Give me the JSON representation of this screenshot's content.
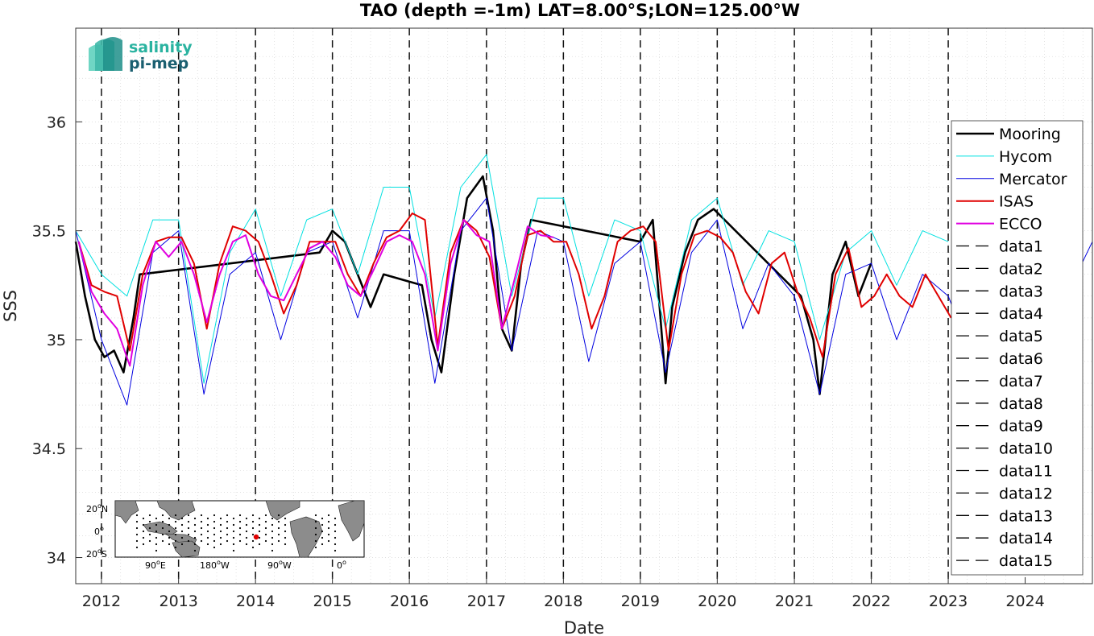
{
  "chart_data": {
    "type": "line",
    "title": "TAO (depth =-1m) LAT=8.00°S;LON=125.00°W",
    "xlabel": "Date",
    "ylabel": "SSS",
    "xlim": [
      "2011-09-01",
      "2024-11-15"
    ],
    "ylim": [
      33.88,
      36.43
    ],
    "x_ticks": [
      "2012",
      "2013",
      "2014",
      "2015",
      "2016",
      "2017",
      "2018",
      "2019",
      "2020",
      "2021",
      "2022",
      "2023",
      "2024"
    ],
    "y_ticks": [
      "34",
      "34.5",
      "35",
      "35.5",
      "36"
    ],
    "grid": true,
    "legend_position": "right",
    "vertical_dashed_lines": [
      "2012-01-01",
      "2013-01-01",
      "2014-01-01",
      "2015-01-01",
      "2016-01-01",
      "2017-01-01",
      "2018-01-01",
      "2019-01-01",
      "2020-01-01",
      "2021-01-01",
      "2022-01-01",
      "2023-01-01"
    ],
    "series": [
      {
        "name": "Mooring",
        "color": "#000000",
        "style": "thick-dots",
        "x": [
          "2011-09-01",
          "2011-10-15",
          "2011-12-01",
          "2012-01-15",
          "2012-03-01",
          "2012-04-15",
          "2012-06-01",
          "2012-07-01",
          "2014-11-01",
          "2015-01-01",
          "2015-03-01",
          "2015-05-01",
          "2015-07-01",
          "2015-09-01",
          "2016-03-01",
          "2016-04-15",
          "2016-06-01",
          "2016-08-01",
          "2016-10-01",
          "2016-12-15",
          "2017-02-01",
          "2017-03-15",
          "2017-05-01",
          "2017-06-15",
          "2017-08-01",
          "2019-01-01",
          "2019-03-01",
          "2019-05-01",
          "2019-06-01",
          "2019-08-01",
          "2019-10-01",
          "2019-12-15",
          "2021-02-01",
          "2021-04-01",
          "2021-05-01",
          "2021-07-01",
          "2021-09-01",
          "2021-11-01",
          "2021-12-31"
        ],
        "y": [
          35.45,
          35.2,
          35.0,
          34.92,
          34.95,
          34.85,
          35.1,
          35.3,
          35.4,
          35.5,
          35.45,
          35.3,
          35.15,
          35.3,
          35.25,
          35.0,
          34.85,
          35.3,
          35.65,
          35.75,
          35.5,
          35.05,
          34.95,
          35.35,
          35.55,
          35.45,
          35.55,
          34.8,
          35.15,
          35.4,
          35.55,
          35.6,
          35.2,
          35.0,
          34.75,
          35.3,
          35.45,
          35.2,
          35.35
        ]
      },
      {
        "name": "Hycom",
        "color": "#00e0e0",
        "style": "thin",
        "x": [
          "2011-09-01",
          "2012-01-01",
          "2012-05-01",
          "2012-09-01",
          "2013-01-01",
          "2013-05-01",
          "2013-09-01",
          "2014-01-01",
          "2014-05-01",
          "2014-09-01",
          "2015-01-01",
          "2015-05-01",
          "2015-09-01",
          "2016-01-01",
          "2016-05-01",
          "2016-09-01",
          "2017-01-01",
          "2017-05-01",
          "2017-09-01",
          "2018-01-01",
          "2018-05-01",
          "2018-09-01",
          "2019-01-01",
          "2019-05-01",
          "2019-09-01",
          "2020-01-01",
          "2020-05-01",
          "2020-09-01",
          "2021-01-01",
          "2021-05-01",
          "2021-09-01",
          "2022-01-01",
          "2022-05-01",
          "2022-09-01",
          "2023-01-01"
        ],
        "y": [
          35.5,
          35.3,
          35.2,
          35.55,
          35.55,
          34.8,
          35.4,
          35.6,
          35.2,
          35.55,
          35.6,
          35.3,
          35.7,
          35.7,
          35.1,
          35.7,
          35.85,
          35.2,
          35.65,
          35.65,
          35.2,
          35.55,
          35.5,
          35.05,
          35.55,
          35.65,
          35.25,
          35.5,
          35.45,
          35.0,
          35.4,
          35.5,
          35.25,
          35.5,
          35.45
        ]
      },
      {
        "name": "Mercator",
        "color": "#0000e0",
        "style": "thin",
        "x": [
          "2011-09-01",
          "2012-01-01",
          "2012-05-01",
          "2012-09-01",
          "2013-01-01",
          "2013-05-01",
          "2013-09-01",
          "2014-01-01",
          "2014-05-01",
          "2014-09-01",
          "2015-01-01",
          "2015-05-01",
          "2015-09-01",
          "2016-01-01",
          "2016-05-01",
          "2016-09-01",
          "2017-01-01",
          "2017-05-01",
          "2017-09-01",
          "2018-01-01",
          "2018-05-01",
          "2018-09-01",
          "2019-01-01",
          "2019-05-01",
          "2019-09-01",
          "2020-01-01",
          "2020-05-01",
          "2020-09-01",
          "2021-01-01",
          "2021-05-01",
          "2021-09-01",
          "2022-01-01",
          "2022-05-01",
          "2022-09-01",
          "2023-01-01",
          "2023-05-01",
          "2023-09-01",
          "2024-01-01",
          "2024-05-01",
          "2024-09-01",
          "2024-11-15"
        ],
        "y": [
          35.5,
          35.0,
          34.7,
          35.4,
          35.5,
          34.75,
          35.3,
          35.4,
          35.0,
          35.4,
          35.45,
          35.1,
          35.5,
          35.5,
          34.8,
          35.5,
          35.65,
          34.95,
          35.5,
          35.45,
          34.9,
          35.35,
          35.45,
          34.85,
          35.4,
          35.55,
          35.05,
          35.35,
          35.2,
          34.75,
          35.3,
          35.35,
          35.0,
          35.3,
          35.2,
          34.9,
          35.2,
          35.35,
          35.05,
          35.3,
          35.45
        ]
      },
      {
        "name": "ISAS",
        "color": "#e00000",
        "style": "monthly",
        "x": [
          "2011-09-15",
          "2011-11-15",
          "2012-01-15",
          "2012-03-15",
          "2012-05-15",
          "2012-07-15",
          "2012-09-15",
          "2012-11-15",
          "2013-01-15",
          "2013-03-15",
          "2013-05-15",
          "2013-07-15",
          "2013-09-15",
          "2013-11-15",
          "2014-01-15",
          "2014-03-15",
          "2014-05-15",
          "2014-07-15",
          "2014-09-15",
          "2014-11-15",
          "2015-01-15",
          "2015-03-15",
          "2015-05-15",
          "2015-07-15",
          "2015-09-15",
          "2015-11-15",
          "2016-01-15",
          "2016-03-15",
          "2016-05-15",
          "2016-07-15",
          "2016-09-15",
          "2016-11-15",
          "2017-01-15",
          "2017-03-15",
          "2017-05-15",
          "2017-07-15",
          "2017-09-15",
          "2017-11-15",
          "2018-01-15",
          "2018-03-15",
          "2018-05-15",
          "2018-07-15",
          "2018-09-15",
          "2018-11-15",
          "2019-01-15",
          "2019-03-15",
          "2019-05-15",
          "2019-07-15",
          "2019-09-15",
          "2019-11-15",
          "2020-01-15",
          "2020-03-15",
          "2020-05-15",
          "2020-07-15",
          "2020-09-15",
          "2020-11-15",
          "2021-01-15",
          "2021-03-15",
          "2021-05-15",
          "2021-07-15",
          "2021-09-15",
          "2021-11-15",
          "2022-01-15",
          "2022-03-15",
          "2022-05-15",
          "2022-07-15",
          "2022-09-15",
          "2022-11-15",
          "2023-01-15"
        ],
        "y": [
          35.45,
          35.25,
          35.22,
          35.2,
          34.95,
          35.3,
          35.45,
          35.47,
          35.47,
          35.35,
          35.05,
          35.35,
          35.52,
          35.5,
          35.45,
          35.3,
          35.12,
          35.25,
          35.45,
          35.45,
          35.45,
          35.3,
          35.2,
          35.35,
          35.47,
          35.5,
          35.58,
          35.55,
          34.97,
          35.4,
          35.55,
          35.5,
          35.38,
          35.05,
          35.2,
          35.48,
          35.5,
          35.45,
          35.45,
          35.3,
          35.05,
          35.2,
          35.45,
          35.5,
          35.52,
          35.45,
          34.95,
          35.3,
          35.48,
          35.5,
          35.47,
          35.4,
          35.22,
          35.12,
          35.35,
          35.4,
          35.22,
          35.1,
          34.92,
          35.3,
          35.42,
          35.15,
          35.2,
          35.3,
          35.2,
          35.15,
          35.3,
          35.2,
          35.1
        ]
      },
      {
        "name": "ECCO",
        "color": "#e000e0",
        "style": "monthly",
        "x": [
          "2011-09-15",
          "2011-11-15",
          "2012-01-15",
          "2012-03-15",
          "2012-05-15",
          "2012-07-15",
          "2012-09-15",
          "2012-11-15",
          "2013-01-15",
          "2013-03-15",
          "2013-05-15",
          "2013-07-15",
          "2013-09-15",
          "2013-11-15",
          "2014-01-15",
          "2014-03-15",
          "2014-05-15",
          "2014-07-15",
          "2014-09-15",
          "2014-11-15",
          "2015-01-15",
          "2015-03-15",
          "2015-05-15",
          "2015-07-15",
          "2015-09-15",
          "2015-11-15",
          "2016-01-15",
          "2016-03-15",
          "2016-05-15",
          "2016-07-15",
          "2016-09-15",
          "2016-11-15",
          "2017-01-15",
          "2017-03-15",
          "2017-05-15",
          "2017-07-15",
          "2017-09-15",
          "2017-11-15"
        ],
        "y": [
          35.45,
          35.22,
          35.12,
          35.05,
          34.88,
          35.25,
          35.45,
          35.38,
          35.45,
          35.3,
          35.08,
          35.3,
          35.45,
          35.48,
          35.3,
          35.2,
          35.18,
          35.3,
          35.42,
          35.45,
          35.38,
          35.25,
          35.2,
          35.32,
          35.45,
          35.48,
          35.45,
          35.3,
          34.95,
          35.35,
          35.55,
          35.48,
          35.45,
          35.05,
          35.28,
          35.52,
          35.48,
          35.47
        ]
      },
      {
        "name": "data1",
        "color": "#000000",
        "style": "dashed"
      },
      {
        "name": "data2",
        "color": "#000000",
        "style": "dashed"
      },
      {
        "name": "data3",
        "color": "#000000",
        "style": "dashed"
      },
      {
        "name": "data4",
        "color": "#000000",
        "style": "dashed"
      },
      {
        "name": "data5",
        "color": "#000000",
        "style": "dashed"
      },
      {
        "name": "data6",
        "color": "#000000",
        "style": "dashed"
      },
      {
        "name": "data7",
        "color": "#000000",
        "style": "dashed"
      },
      {
        "name": "data8",
        "color": "#000000",
        "style": "dashed"
      },
      {
        "name": "data9",
        "color": "#000000",
        "style": "dashed"
      },
      {
        "name": "data10",
        "color": "#000000",
        "style": "dashed"
      },
      {
        "name": "data11",
        "color": "#000000",
        "style": "dashed"
      },
      {
        "name": "data12",
        "color": "#000000",
        "style": "dashed"
      },
      {
        "name": "data13",
        "color": "#000000",
        "style": "dashed"
      },
      {
        "name": "data14",
        "color": "#000000",
        "style": "dashed"
      },
      {
        "name": "data15",
        "color": "#000000",
        "style": "dashed"
      }
    ]
  },
  "logo": {
    "line1": "salinity",
    "line2": "pi-mep"
  },
  "inset_map": {
    "lat_labels": [
      "20",
      "N",
      "0",
      "20",
      "S"
    ],
    "lon_labels": [
      "90",
      "E",
      "180",
      "W",
      "90",
      "W",
      "0"
    ],
    "degree": "o",
    "marker_color": "#e00000"
  }
}
